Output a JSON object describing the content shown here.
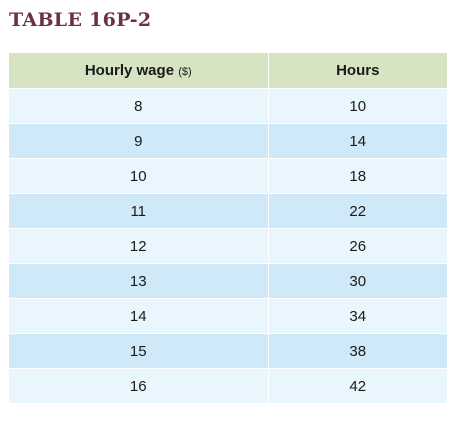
{
  "title": "TABLE 16P-2",
  "table": {
    "headers": {
      "wage_label": "Hourly wage",
      "wage_unit": "($)",
      "hours_label": "Hours"
    },
    "rows": [
      [
        "8",
        "10"
      ],
      [
        "9",
        "14"
      ],
      [
        "10",
        "18"
      ],
      [
        "11",
        "22"
      ],
      [
        "12",
        "26"
      ],
      [
        "13",
        "30"
      ],
      [
        "14",
        "34"
      ],
      [
        "15",
        "38"
      ],
      [
        "16",
        "42"
      ]
    ]
  },
  "colors": {
    "title": "#6b3048",
    "header_bg": "#d6e4c3",
    "row_light": "#eaf6fd",
    "row_dark": "#cfe9f8"
  }
}
